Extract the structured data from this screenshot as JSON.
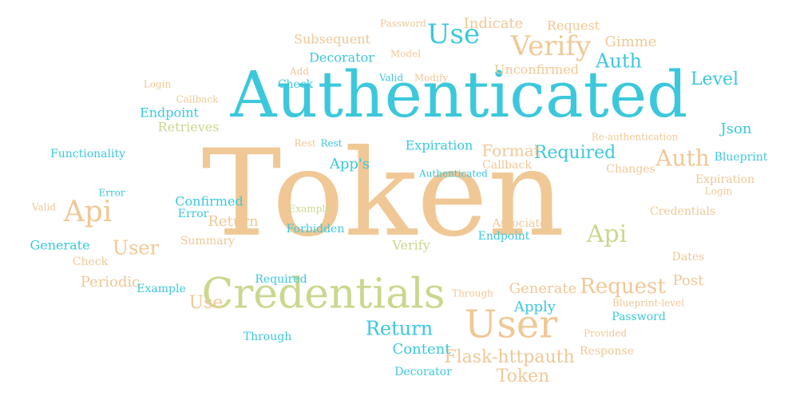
{
  "words": [
    {
      "text": "Token",
      "color": "#f0c896"
    },
    {
      "text": "Authenticated",
      "color": "#3cc8dc"
    },
    {
      "text": "Credentials",
      "color": "#c9d88e"
    },
    {
      "text": "User",
      "color": "#f0c896"
    },
    {
      "text": "Verify",
      "color": "#f0c896"
    },
    {
      "text": "Use",
      "color": "#3cc8dc"
    },
    {
      "text": "Auth",
      "color": "#3cc8dc"
    },
    {
      "text": "Level",
      "color": "#3cc8dc"
    },
    {
      "text": "Auth",
      "color": "#f0c896"
    },
    {
      "text": "Api",
      "color": "#f0c896"
    },
    {
      "text": "Api",
      "color": "#c9d88e"
    },
    {
      "text": "Request",
      "color": "#f0c896"
    },
    {
      "text": "Required",
      "color": "#3cc8dc"
    },
    {
      "text": "Format",
      "color": "#f0c896"
    },
    {
      "text": "Return",
      "color": "#3cc8dc"
    },
    {
      "text": "Flask-httpauth",
      "color": "#f0c896"
    },
    {
      "text": "Token",
      "color": "#f0c896"
    },
    {
      "text": "Content",
      "color": "#3cc8dc"
    },
    {
      "text": "Decorator",
      "color": "#3cc8dc"
    },
    {
      "text": "Use",
      "color": "#f0c896"
    },
    {
      "text": "User",
      "color": "#f0c896"
    },
    {
      "text": "Confirmed",
      "color": "#3cc8dc"
    },
    {
      "text": "Error",
      "color": "#3cc8dc"
    },
    {
      "text": "Return",
      "color": "#f0c896"
    },
    {
      "text": "Summary",
      "color": "#f0c896"
    },
    {
      "text": "Forbidden",
      "color": "#3cc8dc"
    },
    {
      "text": "Example",
      "color": "#c9d88e"
    },
    {
      "text": "Endpoint",
      "color": "#3cc8dc"
    },
    {
      "text": "Associated",
      "color": "#f0c896"
    },
    {
      "text": "Verify",
      "color": "#c9d88e"
    },
    {
      "text": "Generate",
      "color": "#f0c896"
    },
    {
      "text": "Apply",
      "color": "#3cc8dc"
    },
    {
      "text": "Password",
      "color": "#3cc8dc"
    },
    {
      "text": "Post",
      "color": "#f0c896"
    },
    {
      "text": "Dates",
      "color": "#f0c896"
    },
    {
      "text": "Credentials",
      "color": "#f0c896"
    },
    {
      "text": "Json",
      "color": "#3cc8dc"
    },
    {
      "text": "Blueprint",
      "color": "#3cc8dc"
    },
    {
      "text": "Expiration",
      "color": "#f0c896"
    },
    {
      "text": "Login",
      "color": "#f0c896"
    },
    {
      "text": "Expiration",
      "color": "#3cc8dc"
    },
    {
      "text": "App's",
      "color": "#3cc8dc"
    },
    {
      "text": "Callback",
      "color": "#f0c896"
    },
    {
      "text": "Authenticated",
      "color": "#3cc8dc"
    },
    {
      "text": "Rest",
      "color": "#f0c896"
    },
    {
      "text": "Rest",
      "color": "#3cc8dc"
    },
    {
      "text": "Endpoint",
      "color": "#3cc8dc"
    },
    {
      "text": "Retrieves",
      "color": "#c9d88e"
    },
    {
      "text": "Functionality",
      "color": "#3cc8dc"
    },
    {
      "text": "Generate",
      "color": "#3cc8dc"
    },
    {
      "text": "Check",
      "color": "#f0c896"
    },
    {
      "text": "Periodic",
      "color": "#f0c896"
    },
    {
      "text": "Example",
      "color": "#3cc8dc"
    },
    {
      "text": "Required",
      "color": "#3cc8dc"
    },
    {
      "text": "Through",
      "color": "#3cc8dc"
    },
    {
      "text": "Through",
      "color": "#f0c896"
    },
    {
      "text": "Decorator",
      "color": "#3cc8dc"
    },
    {
      "text": "Subsequent",
      "color": "#f0c896"
    },
    {
      "text": "Password",
      "color": "#f0c896"
    },
    {
      "text": "Indicate",
      "color": "#f0c896"
    },
    {
      "text": "Request",
      "color": "#f0c896"
    },
    {
      "text": "Gimme",
      "color": "#f0c896"
    },
    {
      "text": "Unconfirmed",
      "color": "#f0c896"
    },
    {
      "text": "Check",
      "color": "#3cc8dc"
    },
    {
      "text": "Add",
      "color": "#f0c896"
    },
    {
      "text": "Valid",
      "color": "#3cc8dc"
    },
    {
      "text": "Modify",
      "color": "#f0c896"
    },
    {
      "text": "Model",
      "color": "#f0c896"
    },
    {
      "text": "Changes",
      "color": "#f0c896"
    },
    {
      "text": "Response",
      "color": "#f0c896"
    },
    {
      "text": "Provided",
      "color": "#f0c896"
    },
    {
      "text": "Blueprint-level",
      "color": "#f0c896"
    },
    {
      "text": "Error",
      "color": "#3cc8dc"
    },
    {
      "text": "Valid",
      "color": "#f0c896"
    },
    {
      "text": "Re-authentication",
      "color": "#f0c896"
    },
    {
      "text": "Callback",
      "color": "#f0c896"
    },
    {
      "text": "Login",
      "color": "#f0c896"
    }
  ]
}
